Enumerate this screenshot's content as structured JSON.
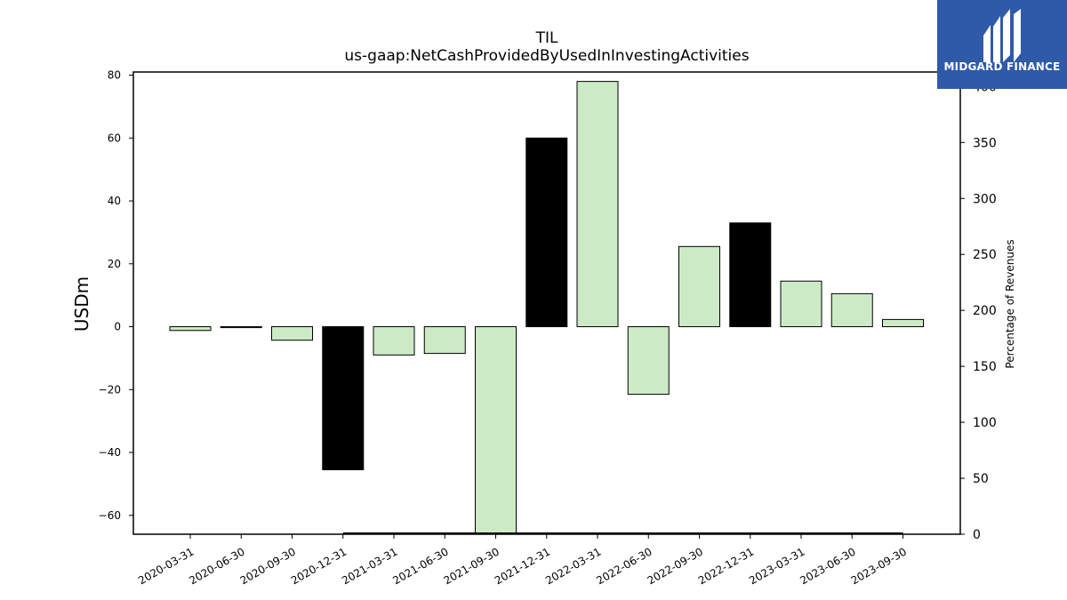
{
  "chart_data": {
    "type": "bar",
    "title": "TIL",
    "subtitle": "us-gaap:NetCashProvidedByUsedInInvestingActivities",
    "ylabel": "USDm",
    "y2label": "Percentage of Revenues",
    "categories": [
      "2020-03-31",
      "2020-06-30",
      "2020-09-30",
      "2020-12-31",
      "2021-03-31",
      "2021-06-30",
      "2021-09-30",
      "2021-12-31",
      "2022-03-31",
      "2022-06-30",
      "2022-09-30",
      "2022-12-31",
      "2023-03-31",
      "2023-06-30",
      "2023-09-30"
    ],
    "values": [
      -1.2,
      -0.3,
      -4.3,
      -45.5,
      -9.0,
      -8.5,
      -66.0,
      60.0,
      78.0,
      -21.5,
      25.5,
      33.0,
      14.5,
      10.5,
      2.3
    ],
    "bar_colors": [
      "#cdeac7",
      "#cdeac7",
      "#cdeac7",
      "#000000",
      "#cdeac7",
      "#cdeac7",
      "#cdeac7",
      "#000000",
      "#cdeac7",
      "#cdeac7",
      "#cdeac7",
      "#000000",
      "#cdeac7",
      "#cdeac7",
      "#cdeac7"
    ],
    "ylim": [
      -66,
      81
    ],
    "yticks": [
      -60,
      -40,
      -20,
      0,
      20,
      40,
      60,
      80
    ],
    "y2lim": [
      0,
      413
    ],
    "y2ticks": [
      0,
      50,
      100,
      150,
      200,
      250,
      300,
      350,
      400
    ],
    "secondary_series": {
      "name": "",
      "start_category": "2020-12-31",
      "end_category": "2023-09-30",
      "value": 0
    },
    "grid": false,
    "legend": "none"
  },
  "logo": {
    "text": "MIDGARD FINANCE",
    "background": "#2f5aa8"
  }
}
